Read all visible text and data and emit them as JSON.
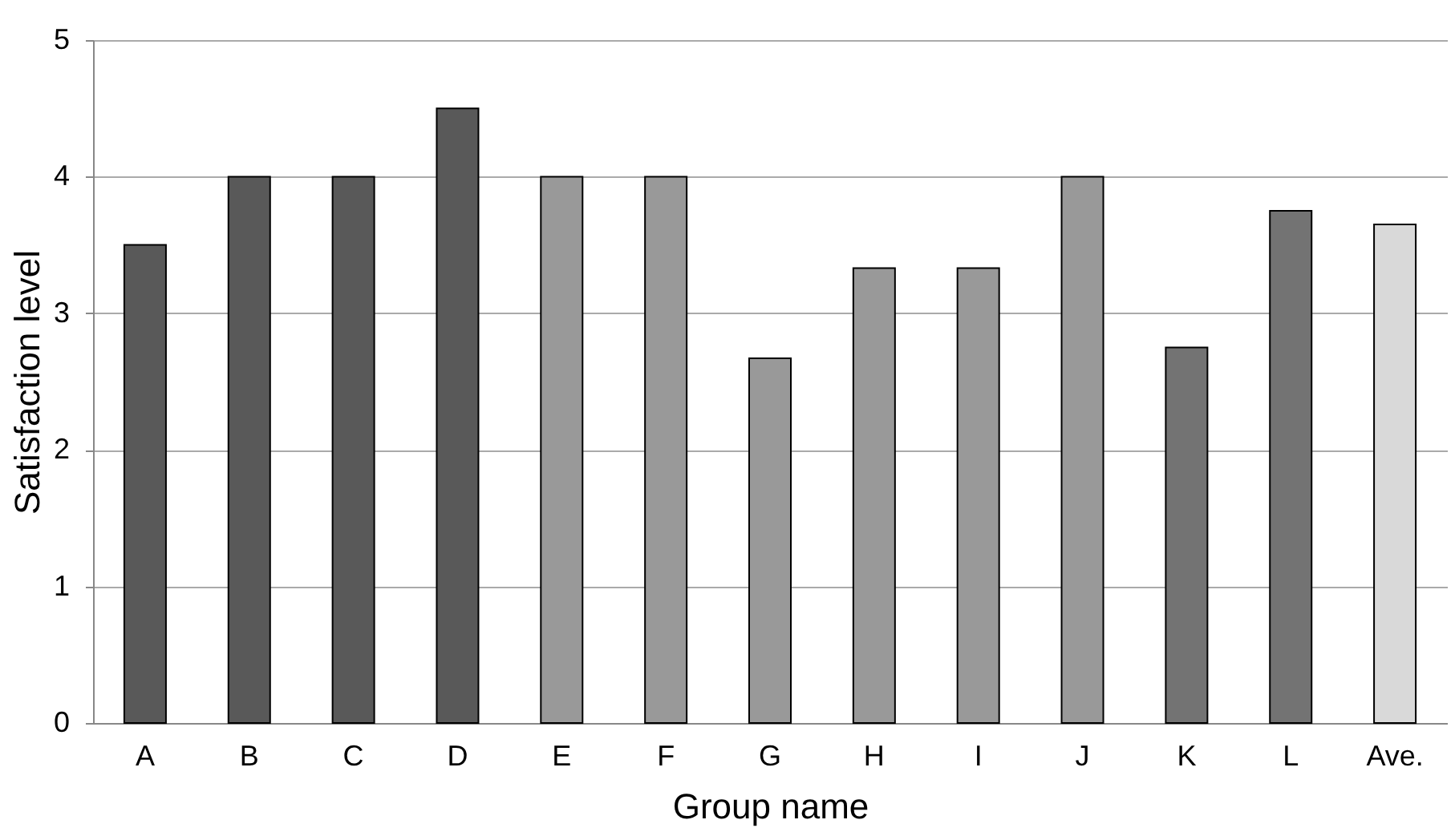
{
  "chart_data": {
    "type": "bar",
    "xlabel": "Group name",
    "ylabel": "Satisfaction level",
    "categories": [
      "A",
      "B",
      "C",
      "D",
      "E",
      "F",
      "G",
      "H",
      "I",
      "J",
      "K",
      "L",
      "Ave."
    ],
    "values": [
      3.5,
      4,
      4,
      4.5,
      4,
      4,
      2.67,
      3.33,
      3.33,
      4,
      2.75,
      3.75,
      3.65
    ],
    "colors": [
      "#595959",
      "#595959",
      "#595959",
      "#595959",
      "#999999",
      "#999999",
      "#999999",
      "#999999",
      "#999999",
      "#999999",
      "#737373",
      "#737373",
      "#d9d9d9"
    ],
    "ylim": [
      0,
      5
    ],
    "yticks": [
      0,
      1,
      2,
      3,
      4,
      5
    ],
    "grid": "y"
  }
}
